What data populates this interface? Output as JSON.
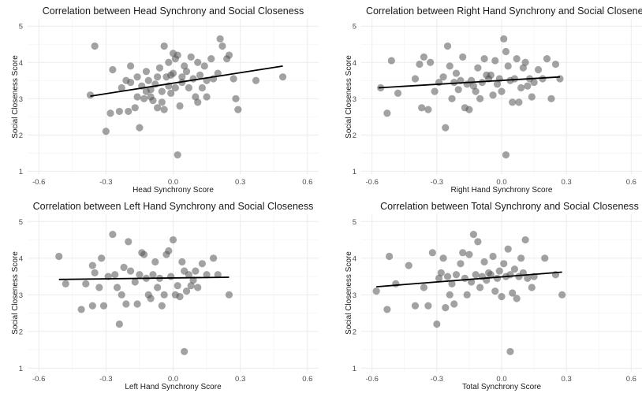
{
  "colors": {
    "point": "#555555",
    "fit_line": "#000000",
    "grid": "#ebebeb",
    "background": "#ffffff"
  },
  "chart_data": [
    {
      "type": "scatter",
      "title": "Correlation between Head Synchrony and Social Closeness",
      "xlabel": "Head Synchrony Score",
      "ylabel": "Social Closeness Score",
      "xlim": [
        -0.65,
        0.65
      ],
      "ylim": [
        0.9,
        5.2
      ],
      "xticks": [
        -0.6,
        -0.3,
        0.0,
        0.3,
        0.6
      ],
      "xtick_labels": [
        "-0.6",
        "-0.3",
        "0.0",
        "0.3",
        "0.6"
      ],
      "yticks": [
        1,
        2,
        3,
        4,
        5
      ],
      "ytick_labels": [
        "1",
        "2",
        "3",
        "4",
        "5"
      ],
      "grid": true,
      "fit_line": {
        "x": [
          -0.37,
          0.49
        ],
        "y": [
          3.07,
          3.9
        ]
      },
      "points": [
        [
          -0.37,
          3.1
        ],
        [
          -0.35,
          4.45
        ],
        [
          -0.3,
          2.1
        ],
        [
          -0.28,
          2.6
        ],
        [
          -0.27,
          3.8
        ],
        [
          -0.24,
          2.65
        ],
        [
          -0.23,
          3.3
        ],
        [
          -0.21,
          3.5
        ],
        [
          -0.2,
          2.65
        ],
        [
          -0.19,
          3.45
        ],
        [
          -0.19,
          3.9
        ],
        [
          -0.17,
          2.75
        ],
        [
          -0.16,
          3.05
        ],
        [
          -0.16,
          3.6
        ],
        [
          -0.15,
          2.2
        ],
        [
          -0.14,
          3.35
        ],
        [
          -0.13,
          3.0
        ],
        [
          -0.12,
          3.75
        ],
        [
          -0.12,
          3.2
        ],
        [
          -0.11,
          3.5
        ],
        [
          -0.1,
          3.05
        ],
        [
          -0.1,
          3.25
        ],
        [
          -0.09,
          2.95
        ],
        [
          -0.08,
          3.4
        ],
        [
          -0.07,
          3.6
        ],
        [
          -0.07,
          2.75
        ],
        [
          -0.06,
          3.85
        ],
        [
          -0.05,
          3.2
        ],
        [
          -0.05,
          2.9
        ],
        [
          -0.04,
          4.45
        ],
        [
          -0.04,
          2.7
        ],
        [
          -0.03,
          3.6
        ],
        [
          -0.02,
          3.35
        ],
        [
          -0.02,
          4.0
        ],
        [
          -0.01,
          3.15
        ],
        [
          -0.01,
          3.65
        ],
        [
          0.0,
          4.25
        ],
        [
          0.0,
          3.7
        ],
        [
          0.01,
          4.1
        ],
        [
          0.01,
          3.3
        ],
        [
          0.02,
          4.2
        ],
        [
          0.02,
          1.45
        ],
        [
          0.03,
          2.8
        ],
        [
          0.04,
          3.45
        ],
        [
          0.04,
          3.6
        ],
        [
          0.05,
          3.9
        ],
        [
          0.06,
          3.75
        ],
        [
          0.07,
          3.3
        ],
        [
          0.08,
          4.15
        ],
        [
          0.09,
          3.55
        ],
        [
          0.1,
          3.05
        ],
        [
          0.11,
          2.9
        ],
        [
          0.11,
          4.0
        ],
        [
          0.12,
          3.65
        ],
        [
          0.13,
          3.3
        ],
        [
          0.14,
          3.9
        ],
        [
          0.15,
          3.5
        ],
        [
          0.15,
          3.05
        ],
        [
          0.17,
          4.1
        ],
        [
          0.18,
          3.55
        ],
        [
          0.2,
          3.7
        ],
        [
          0.21,
          4.65
        ],
        [
          0.22,
          4.45
        ],
        [
          0.24,
          4.1
        ],
        [
          0.25,
          4.2
        ],
        [
          0.27,
          3.55
        ],
        [
          0.28,
          3.0
        ],
        [
          0.29,
          2.7
        ],
        [
          0.37,
          3.5
        ],
        [
          0.49,
          3.6
        ]
      ]
    },
    {
      "type": "scatter",
      "title": "Correlation between Right Hand Synchrony and Social Closeness",
      "xlabel": "Right Hand Synchrony Score",
      "ylabel": "Social Closeness Score",
      "xlim": [
        -0.65,
        0.65
      ],
      "ylim": [
        0.9,
        5.2
      ],
      "xticks": [
        -0.6,
        -0.3,
        0.0,
        0.3,
        0.6
      ],
      "xtick_labels": [
        "-0.6",
        "-0.3",
        "0.0",
        "0.3",
        "0.6"
      ],
      "yticks": [
        1,
        2,
        3,
        4,
        5
      ],
      "ytick_labels": [
        "1",
        "2",
        "3",
        "4",
        "5"
      ],
      "grid": true,
      "fit_line": {
        "x": [
          -0.57,
          0.27
        ],
        "y": [
          3.3,
          3.6
        ]
      },
      "points": [
        [
          -0.56,
          3.3
        ],
        [
          -0.53,
          2.6
        ],
        [
          -0.51,
          4.05
        ],
        [
          -0.48,
          3.15
        ],
        [
          -0.4,
          3.55
        ],
        [
          -0.38,
          3.95
        ],
        [
          -0.37,
          2.75
        ],
        [
          -0.36,
          4.15
        ],
        [
          -0.34,
          2.7
        ],
        [
          -0.33,
          4.0
        ],
        [
          -0.31,
          3.2
        ],
        [
          -0.29,
          3.45
        ],
        [
          -0.27,
          3.6
        ],
        [
          -0.26,
          2.2
        ],
        [
          -0.25,
          4.45
        ],
        [
          -0.24,
          3.9
        ],
        [
          -0.23,
          3.0
        ],
        [
          -0.22,
          3.45
        ],
        [
          -0.21,
          3.7
        ],
        [
          -0.2,
          3.25
        ],
        [
          -0.19,
          3.5
        ],
        [
          -0.18,
          4.15
        ],
        [
          -0.17,
          2.75
        ],
        [
          -0.16,
          3.4
        ],
        [
          -0.15,
          2.7
        ],
        [
          -0.14,
          3.5
        ],
        [
          -0.13,
          3.35
        ],
        [
          -0.12,
          3.2
        ],
        [
          -0.11,
          3.85
        ],
        [
          -0.1,
          3.0
        ],
        [
          -0.09,
          3.45
        ],
        [
          -0.08,
          4.1
        ],
        [
          -0.07,
          3.65
        ],
        [
          -0.06,
          3.55
        ],
        [
          -0.05,
          3.65
        ],
        [
          -0.04,
          3.1
        ],
        [
          -0.03,
          4.05
        ],
        [
          -0.02,
          3.4
        ],
        [
          -0.01,
          3.55
        ],
        [
          0.0,
          3.2
        ],
        [
          0.01,
          4.65
        ],
        [
          0.02,
          4.3
        ],
        [
          0.02,
          1.45
        ],
        [
          0.03,
          3.9
        ],
        [
          0.04,
          3.5
        ],
        [
          0.05,
          2.9
        ],
        [
          0.06,
          3.55
        ],
        [
          0.07,
          4.1
        ],
        [
          0.08,
          2.9
        ],
        [
          0.09,
          3.3
        ],
        [
          0.1,
          3.85
        ],
        [
          0.11,
          4.0
        ],
        [
          0.12,
          3.35
        ],
        [
          0.13,
          3.55
        ],
        [
          0.14,
          3.05
        ],
        [
          0.15,
          3.45
        ],
        [
          0.17,
          3.8
        ],
        [
          0.19,
          3.55
        ],
        [
          0.21,
          4.1
        ],
        [
          0.23,
          3.0
        ],
        [
          0.25,
          3.95
        ],
        [
          0.27,
          3.55
        ]
      ]
    },
    {
      "type": "scatter",
      "title": "Correlation between Left Hand Synchrony and Social Closeness",
      "xlabel": "Left Hand Synchrony Score",
      "ylabel": "Social Closeness Score",
      "xlim": [
        -0.65,
        0.65
      ],
      "ylim": [
        0.9,
        5.2
      ],
      "xticks": [
        -0.6,
        -0.3,
        0.0,
        0.3,
        0.6
      ],
      "xtick_labels": [
        "-0.6",
        "-0.3",
        "0.0",
        "0.3",
        "0.6"
      ],
      "yticks": [
        1,
        2,
        3,
        4,
        5
      ],
      "ytick_labels": [
        "1",
        "2",
        "3",
        "4",
        "5"
      ],
      "grid": true,
      "fit_line": {
        "x": [
          -0.51,
          0.25
        ],
        "y": [
          3.42,
          3.48
        ]
      },
      "points": [
        [
          -0.51,
          4.05
        ],
        [
          -0.48,
          3.3
        ],
        [
          -0.41,
          2.6
        ],
        [
          -0.39,
          3.3
        ],
        [
          -0.36,
          3.8
        ],
        [
          -0.36,
          2.7
        ],
        [
          -0.35,
          3.6
        ],
        [
          -0.33,
          3.2
        ],
        [
          -0.32,
          4.0
        ],
        [
          -0.31,
          2.7
        ],
        [
          -0.29,
          3.5
        ],
        [
          -0.27,
          4.65
        ],
        [
          -0.26,
          3.55
        ],
        [
          -0.25,
          3.2
        ],
        [
          -0.24,
          2.2
        ],
        [
          -0.23,
          3.0
        ],
        [
          -0.22,
          3.75
        ],
        [
          -0.21,
          2.75
        ],
        [
          -0.2,
          4.45
        ],
        [
          -0.19,
          3.65
        ],
        [
          -0.17,
          3.35
        ],
        [
          -0.16,
          2.75
        ],
        [
          -0.15,
          3.55
        ],
        [
          -0.14,
          4.15
        ],
        [
          -0.13,
          4.1
        ],
        [
          -0.12,
          3.45
        ],
        [
          -0.11,
          3.0
        ],
        [
          -0.1,
          2.9
        ],
        [
          -0.09,
          3.55
        ],
        [
          -0.08,
          3.9
        ],
        [
          -0.07,
          3.2
        ],
        [
          -0.06,
          3.45
        ],
        [
          -0.05,
          2.7
        ],
        [
          -0.04,
          3.0
        ],
        [
          -0.03,
          4.1
        ],
        [
          -0.02,
          4.2
        ],
        [
          -0.01,
          3.5
        ],
        [
          0.0,
          4.5
        ],
        [
          0.01,
          3.0
        ],
        [
          0.02,
          3.25
        ],
        [
          0.03,
          2.95
        ],
        [
          0.04,
          3.9
        ],
        [
          0.05,
          3.65
        ],
        [
          0.05,
          1.45
        ],
        [
          0.06,
          3.1
        ],
        [
          0.07,
          3.55
        ],
        [
          0.08,
          3.25
        ],
        [
          0.09,
          3.4
        ],
        [
          0.1,
          3.65
        ],
        [
          0.11,
          3.2
        ],
        [
          0.13,
          3.85
        ],
        [
          0.15,
          3.55
        ],
        [
          0.18,
          4.0
        ],
        [
          0.2,
          3.55
        ],
        [
          0.25,
          3.0
        ]
      ]
    },
    {
      "type": "scatter",
      "title": "Correlation between Total Synchrony and Social Closeness",
      "xlabel": "Total Synchrony Score",
      "ylabel": "Social Closeness Score",
      "xlim": [
        -0.65,
        0.65
      ],
      "ylim": [
        0.9,
        5.2
      ],
      "xticks": [
        -0.6,
        -0.3,
        0.0,
        0.3,
        0.6
      ],
      "xtick_labels": [
        "-0.6",
        "-0.3",
        "0.0",
        "0.3",
        "0.6"
      ],
      "yticks": [
        1,
        2,
        3,
        4,
        5
      ],
      "ytick_labels": [
        "1",
        "2",
        "3",
        "4",
        "5"
      ],
      "grid": true,
      "fit_line": {
        "x": [
          -0.58,
          0.28
        ],
        "y": [
          3.22,
          3.62
        ]
      },
      "points": [
        [
          -0.58,
          3.1
        ],
        [
          -0.53,
          2.6
        ],
        [
          -0.52,
          4.05
        ],
        [
          -0.49,
          3.3
        ],
        [
          -0.43,
          3.8
        ],
        [
          -0.4,
          2.7
        ],
        [
          -0.36,
          3.2
        ],
        [
          -0.34,
          2.7
        ],
        [
          -0.32,
          4.15
        ],
        [
          -0.3,
          2.2
        ],
        [
          -0.29,
          3.45
        ],
        [
          -0.28,
          3.6
        ],
        [
          -0.27,
          4.0
        ],
        [
          -0.26,
          2.65
        ],
        [
          -0.25,
          3.5
        ],
        [
          -0.24,
          3.0
        ],
        [
          -0.23,
          3.3
        ],
        [
          -0.22,
          2.75
        ],
        [
          -0.21,
          3.55
        ],
        [
          -0.19,
          3.85
        ],
        [
          -0.18,
          4.15
        ],
        [
          -0.17,
          3.45
        ],
        [
          -0.16,
          3.0
        ],
        [
          -0.15,
          4.1
        ],
        [
          -0.14,
          3.35
        ],
        [
          -0.13,
          4.65
        ],
        [
          -0.12,
          3.55
        ],
        [
          -0.11,
          4.45
        ],
        [
          -0.1,
          3.2
        ],
        [
          -0.09,
          3.5
        ],
        [
          -0.08,
          3.9
        ],
        [
          -0.07,
          3.4
        ],
        [
          -0.06,
          3.6
        ],
        [
          -0.05,
          3.55
        ],
        [
          -0.04,
          4.05
        ],
        [
          -0.03,
          3.1
        ],
        [
          -0.02,
          3.45
        ],
        [
          -0.01,
          3.65
        ],
        [
          0.0,
          2.95
        ],
        [
          0.01,
          3.85
        ],
        [
          0.02,
          3.5
        ],
        [
          0.03,
          4.25
        ],
        [
          0.04,
          3.55
        ],
        [
          0.04,
          1.45
        ],
        [
          0.05,
          3.05
        ],
        [
          0.06,
          3.7
        ],
        [
          0.07,
          2.9
        ],
        [
          0.08,
          3.5
        ],
        [
          0.09,
          4.0
        ],
        [
          0.1,
          3.6
        ],
        [
          0.11,
          4.5
        ],
        [
          0.12,
          3.45
        ],
        [
          0.14,
          3.2
        ],
        [
          0.15,
          3.5
        ],
        [
          0.2,
          4.0
        ],
        [
          0.25,
          3.55
        ],
        [
          0.28,
          3.0
        ]
      ]
    }
  ]
}
